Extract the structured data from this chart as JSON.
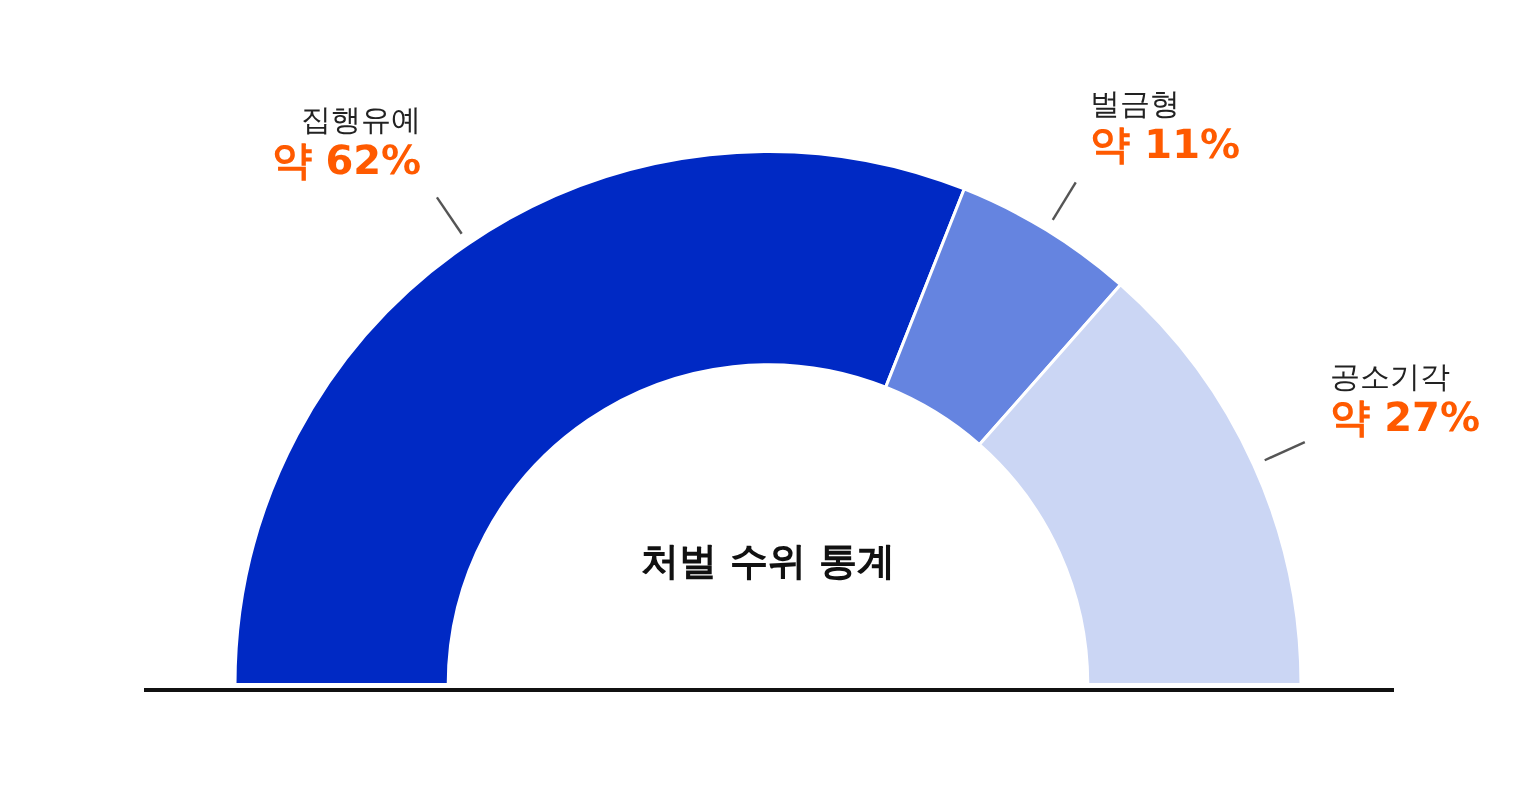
{
  "chart_data": {
    "type": "donut",
    "title": "처벌 수위 통계",
    "categories": [
      "집행유예",
      "벌금형",
      "공소기각"
    ],
    "values": [
      62,
      11,
      27
    ],
    "value_labels": [
      "약 62%",
      "약 11%",
      "약 27%"
    ],
    "colors": [
      "#0029c4",
      "#6584e0",
      "#cbd6f4"
    ],
    "legend": false
  }
}
